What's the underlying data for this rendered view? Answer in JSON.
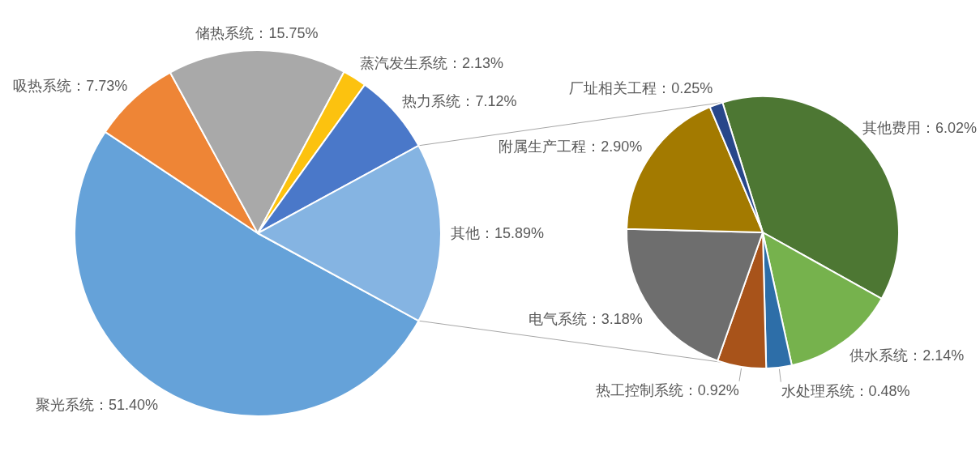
{
  "chart_data": [
    {
      "type": "pie",
      "categories": [
        "聚光系统",
        "吸热系统",
        "储热系统",
        "蒸汽发生系统",
        "热力系统",
        "其他"
      ],
      "values": [
        51.4,
        7.73,
        15.75,
        2.13,
        7.12,
        15.89
      ],
      "colors": [
        "#65a2d9",
        "#ee8536",
        "#a9a9a9",
        "#fcc20f",
        "#4a78c9",
        "#85b4e2"
      ],
      "value_labels": [
        "51.40%",
        "7.73%",
        "15.75%",
        "2.13%",
        "7.12%",
        "15.89%"
      ]
    },
    {
      "type": "pie",
      "categories": [
        "其他费用",
        "供水系统",
        "水处理系统",
        "热工控制系统",
        "电气系统",
        "附属生产工程",
        "厂址相关工程"
      ],
      "values": [
        6.02,
        2.14,
        0.48,
        0.92,
        3.18,
        2.9,
        0.25
      ],
      "colors": [
        "#4d7733",
        "#76b24d",
        "#2d6ea8",
        "#a8531a",
        "#6e6e6e",
        "#a37a00",
        "#28478a"
      ],
      "value_labels": [
        "6.02%",
        "2.14%",
        "0.48%",
        "0.92%",
        "3.18%",
        "2.90%",
        "0.25%"
      ]
    }
  ]
}
